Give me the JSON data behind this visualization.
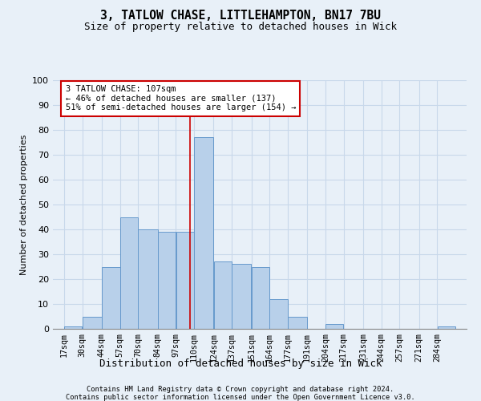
{
  "title1": "3, TATLOW CHASE, LITTLEHAMPTON, BN17 7BU",
  "title2": "Size of property relative to detached houses in Wick",
  "xlabel": "Distribution of detached houses by size in Wick",
  "ylabel": "Number of detached properties",
  "bar_labels": [
    "17sqm",
    "30sqm",
    "44sqm",
    "57sqm",
    "70sqm",
    "84sqm",
    "97sqm",
    "110sqm",
    "124sqm",
    "137sqm",
    "151sqm",
    "164sqm",
    "177sqm",
    "191sqm",
    "204sqm",
    "217sqm",
    "231sqm",
    "244sqm",
    "257sqm",
    "271sqm",
    "284sqm"
  ],
  "bar_values": [
    1,
    5,
    25,
    45,
    40,
    39,
    39,
    77,
    27,
    26,
    25,
    12,
    5,
    0,
    2,
    0,
    0,
    0,
    0,
    0,
    1
  ],
  "bar_color": "#b8d0ea",
  "bar_edge_color": "#6699cc",
  "grid_color": "#c8d8ea",
  "background_color": "#e8f0f8",
  "subject_line_color": "#cc0000",
  "annotation_text": "3 TATLOW CHASE: 107sqm\n← 46% of detached houses are smaller (137)\n51% of semi-detached houses are larger (154) →",
  "annotation_box_color": "white",
  "annotation_box_edge": "#cc0000",
  "footer1": "Contains HM Land Registry data © Crown copyright and database right 2024.",
  "footer2": "Contains public sector information licensed under the Open Government Licence v3.0.",
  "ylim": [
    0,
    100
  ],
  "yticks": [
    0,
    10,
    20,
    30,
    40,
    50,
    60,
    70,
    80,
    90,
    100
  ],
  "edges": [
    17,
    30,
    44,
    57,
    70,
    84,
    97,
    110,
    124,
    137,
    151,
    164,
    177,
    191,
    204,
    217,
    231,
    244,
    257,
    271,
    284,
    297
  ]
}
